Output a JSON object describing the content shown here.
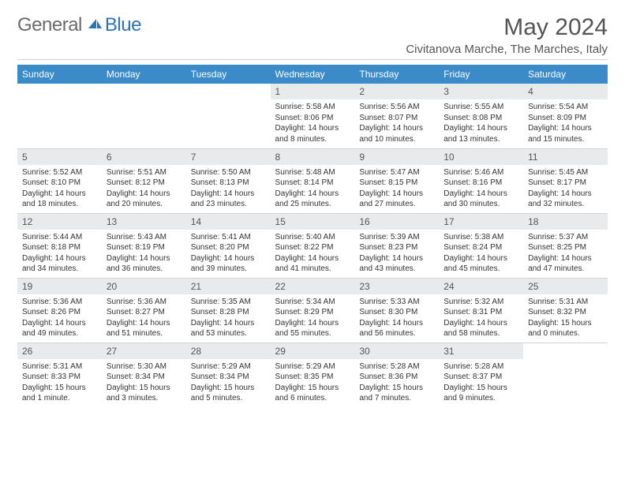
{
  "brand": {
    "part1": "General",
    "part2": "Blue"
  },
  "title": "May 2024",
  "location": "Civitanova Marche, The Marches, Italy",
  "colors": {
    "header_bg": "#3b8bc9",
    "header_text": "#ffffff",
    "daynum_bg": "#e9eaeb",
    "border": "#cfd4d8",
    "brand_gray": "#6b6b6b",
    "brand_blue": "#2a74b8"
  },
  "weekdays": [
    "Sunday",
    "Monday",
    "Tuesday",
    "Wednesday",
    "Thursday",
    "Friday",
    "Saturday"
  ],
  "weeks": [
    [
      {
        "n": "",
        "sr": "",
        "ss": "",
        "dl": ""
      },
      {
        "n": "",
        "sr": "",
        "ss": "",
        "dl": ""
      },
      {
        "n": "",
        "sr": "",
        "ss": "",
        "dl": ""
      },
      {
        "n": "1",
        "sr": "5:58 AM",
        "ss": "8:06 PM",
        "dl": "14 hours and 8 minutes."
      },
      {
        "n": "2",
        "sr": "5:56 AM",
        "ss": "8:07 PM",
        "dl": "14 hours and 10 minutes."
      },
      {
        "n": "3",
        "sr": "5:55 AM",
        "ss": "8:08 PM",
        "dl": "14 hours and 13 minutes."
      },
      {
        "n": "4",
        "sr": "5:54 AM",
        "ss": "8:09 PM",
        "dl": "14 hours and 15 minutes."
      }
    ],
    [
      {
        "n": "5",
        "sr": "5:52 AM",
        "ss": "8:10 PM",
        "dl": "14 hours and 18 minutes."
      },
      {
        "n": "6",
        "sr": "5:51 AM",
        "ss": "8:12 PM",
        "dl": "14 hours and 20 minutes."
      },
      {
        "n": "7",
        "sr": "5:50 AM",
        "ss": "8:13 PM",
        "dl": "14 hours and 23 minutes."
      },
      {
        "n": "8",
        "sr": "5:48 AM",
        "ss": "8:14 PM",
        "dl": "14 hours and 25 minutes."
      },
      {
        "n": "9",
        "sr": "5:47 AM",
        "ss": "8:15 PM",
        "dl": "14 hours and 27 minutes."
      },
      {
        "n": "10",
        "sr": "5:46 AM",
        "ss": "8:16 PM",
        "dl": "14 hours and 30 minutes."
      },
      {
        "n": "11",
        "sr": "5:45 AM",
        "ss": "8:17 PM",
        "dl": "14 hours and 32 minutes."
      }
    ],
    [
      {
        "n": "12",
        "sr": "5:44 AM",
        "ss": "8:18 PM",
        "dl": "14 hours and 34 minutes."
      },
      {
        "n": "13",
        "sr": "5:43 AM",
        "ss": "8:19 PM",
        "dl": "14 hours and 36 minutes."
      },
      {
        "n": "14",
        "sr": "5:41 AM",
        "ss": "8:20 PM",
        "dl": "14 hours and 39 minutes."
      },
      {
        "n": "15",
        "sr": "5:40 AM",
        "ss": "8:22 PM",
        "dl": "14 hours and 41 minutes."
      },
      {
        "n": "16",
        "sr": "5:39 AM",
        "ss": "8:23 PM",
        "dl": "14 hours and 43 minutes."
      },
      {
        "n": "17",
        "sr": "5:38 AM",
        "ss": "8:24 PM",
        "dl": "14 hours and 45 minutes."
      },
      {
        "n": "18",
        "sr": "5:37 AM",
        "ss": "8:25 PM",
        "dl": "14 hours and 47 minutes."
      }
    ],
    [
      {
        "n": "19",
        "sr": "5:36 AM",
        "ss": "8:26 PM",
        "dl": "14 hours and 49 minutes."
      },
      {
        "n": "20",
        "sr": "5:36 AM",
        "ss": "8:27 PM",
        "dl": "14 hours and 51 minutes."
      },
      {
        "n": "21",
        "sr": "5:35 AM",
        "ss": "8:28 PM",
        "dl": "14 hours and 53 minutes."
      },
      {
        "n": "22",
        "sr": "5:34 AM",
        "ss": "8:29 PM",
        "dl": "14 hours and 55 minutes."
      },
      {
        "n": "23",
        "sr": "5:33 AM",
        "ss": "8:30 PM",
        "dl": "14 hours and 56 minutes."
      },
      {
        "n": "24",
        "sr": "5:32 AM",
        "ss": "8:31 PM",
        "dl": "14 hours and 58 minutes."
      },
      {
        "n": "25",
        "sr": "5:31 AM",
        "ss": "8:32 PM",
        "dl": "15 hours and 0 minutes."
      }
    ],
    [
      {
        "n": "26",
        "sr": "5:31 AM",
        "ss": "8:33 PM",
        "dl": "15 hours and 1 minute."
      },
      {
        "n": "27",
        "sr": "5:30 AM",
        "ss": "8:34 PM",
        "dl": "15 hours and 3 minutes."
      },
      {
        "n": "28",
        "sr": "5:29 AM",
        "ss": "8:34 PM",
        "dl": "15 hours and 5 minutes."
      },
      {
        "n": "29",
        "sr": "5:29 AM",
        "ss": "8:35 PM",
        "dl": "15 hours and 6 minutes."
      },
      {
        "n": "30",
        "sr": "5:28 AM",
        "ss": "8:36 PM",
        "dl": "15 hours and 7 minutes."
      },
      {
        "n": "31",
        "sr": "5:28 AM",
        "ss": "8:37 PM",
        "dl": "15 hours and 9 minutes."
      },
      {
        "n": "",
        "sr": "",
        "ss": "",
        "dl": ""
      }
    ]
  ],
  "labels": {
    "sunrise": "Sunrise:",
    "sunset": "Sunset:",
    "daylight": "Daylight:"
  }
}
